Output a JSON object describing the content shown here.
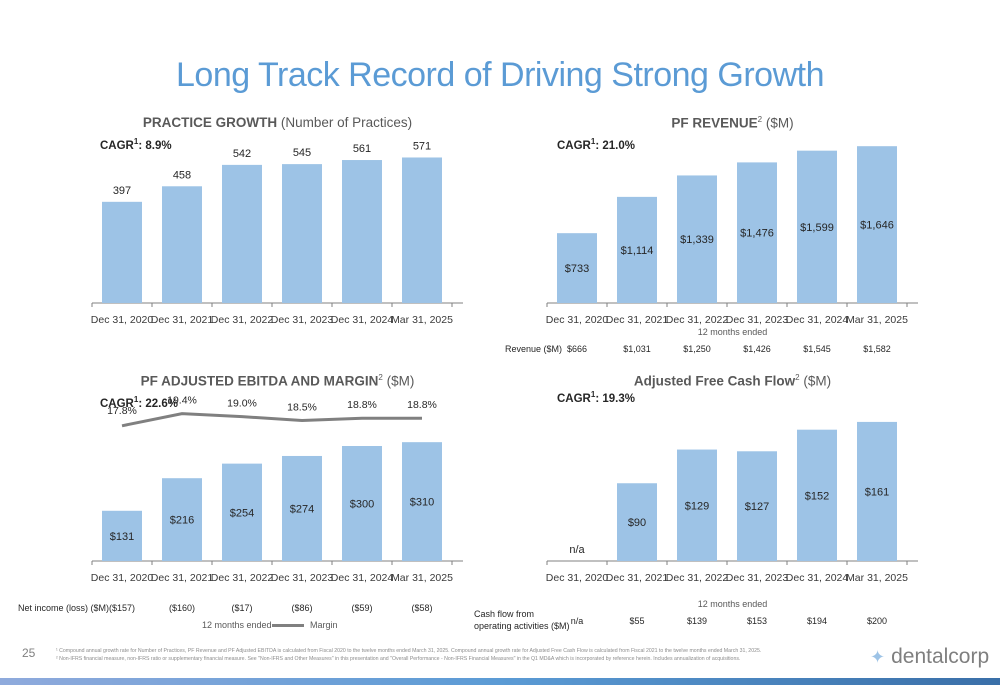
{
  "page": {
    "title": "Long Track Record of Driving Strong Growth",
    "page_number": "25",
    "logo_text": "dentalcorp",
    "logo_icon": "sparkle-icon",
    "footnotes": [
      "¹ Compound annual growth rate for Number of Practices, PF Revenue and PF Adjusted EBITDA is calculated from Fiscal 2020 to the twelve months ended March 31, 2025. Compound annual growth rate for Adjusted Free Cash Flow is calculated from Fiscal 2021 to the twelve months ended March 31, 2025.",
      "² Non-IFRS financial measure, non-IFRS ratio or supplementary financial measure. See \"Non-IFRS and Other Measures\" in this presentation and \"Overall Performance - Non-IFRS Financial Measures\" in the Q1 MD&A which is incorporated by reference herein. Includes annualization of acquisitions."
    ],
    "colors": {
      "bar": "#9dc3e6",
      "title": "#5b9bd5",
      "line": "#808080"
    }
  },
  "chart_data": [
    {
      "type": "bar",
      "title_bold": "PRACTICE GROWTH",
      "title_rest": " (Number of Practices)",
      "cagr_label": "CAGR",
      "cagr_sup": "1",
      "cagr_value": ": 8.9%",
      "categories": [
        "Dec 31, 2020",
        "Dec 31, 2021",
        "Dec 31, 2022",
        "Dec 31, 2023",
        "Dec 31, 2024",
        "Mar 31, 2025"
      ],
      "values": [
        397,
        458,
        542,
        545,
        561,
        571
      ],
      "data_labels": [
        "397",
        "458",
        "542",
        "545",
        "561",
        "571"
      ],
      "label_position": "above",
      "ylim": [
        0,
        620
      ]
    },
    {
      "type": "bar",
      "title_bold": "PF REVENUE",
      "title_sup": "2",
      "title_rest": " ($M)",
      "cagr_label": "CAGR",
      "cagr_sup": "1",
      "cagr_value": ": 21.0%",
      "categories": [
        "Dec 31, 2020",
        "Dec 31, 2021",
        "Dec 31, 2022",
        "Dec 31, 2023",
        "Dec 31, 2024",
        "Mar 31, 2025"
      ],
      "values": [
        733,
        1114,
        1339,
        1476,
        1599,
        1646
      ],
      "data_labels": [
        "$733",
        "$1,114",
        "$1,339",
        "$1,476",
        "$1,599",
        "$1,646"
      ],
      "label_position": "inside",
      "ylim": [
        0,
        1690
      ],
      "axis_note": "12 months ended",
      "row": {
        "label": "Revenue ($M)",
        "values": [
          "$666",
          "$1,031",
          "$1,250",
          "$1,426",
          "$1,545",
          "$1,582"
        ]
      }
    },
    {
      "type": "bar+line",
      "title_bold": "PF ADJUSTED EBITDA AND MARGIN",
      "title_sup": "2",
      "title_rest": " ($M)",
      "cagr_label": "CAGR",
      "cagr_sup": "1",
      "cagr_value": ": 22.6%",
      "categories": [
        "Dec 31, 2020",
        "Dec 31, 2021",
        "Dec 31, 2022",
        "Dec 31, 2023",
        "Dec 31, 2024",
        "Mar 31, 2025"
      ],
      "values": [
        131,
        216,
        254,
        274,
        300,
        310
      ],
      "data_labels": [
        "$131",
        "$216",
        "$254",
        "$274",
        "$300",
        "$310"
      ],
      "label_position": "inside",
      "ylim": [
        0,
        420
      ],
      "margin_values": [
        17.8,
        19.4,
        19.0,
        18.5,
        18.8,
        18.8
      ],
      "margin_labels": [
        "17.8%",
        "19.4%",
        "19.0%",
        "18.5%",
        "18.8%",
        "18.8%"
      ],
      "margin_range": [
        0,
        20.8
      ],
      "row": {
        "label": "Net income (loss) ($M)",
        "values": [
          "($157)",
          "($160)",
          "($17)",
          "($86)",
          "($59)",
          "($58)"
        ]
      },
      "axis_note": "12 months ended",
      "legend": {
        "line": "Margin",
        "position": "bottom"
      }
    },
    {
      "type": "bar",
      "title_bold": "Adjusted Free Cash Flow",
      "title_sup": "2",
      "title_rest": " ($M)",
      "cagr_label": "CAGR",
      "cagr_sup": "1",
      "cagr_value": ": 19.3%",
      "categories": [
        "Dec 31, 2020",
        "Dec 31, 2021",
        "Dec 31, 2022",
        "Dec 31, 2023",
        "Dec 31, 2024",
        "Mar 31, 2025"
      ],
      "values": [
        null,
        90,
        129,
        127,
        152,
        161
      ],
      "data_labels": [
        "n/a",
        "$90",
        "$129",
        "$127",
        "$152",
        "$161"
      ],
      "label_position": "inside",
      "ylim": [
        0,
        169
      ],
      "axis_note": "12 months ended",
      "row": {
        "label_line1": "Cash flow from",
        "label_line2": "operating activities ($M)",
        "values": [
          "n/a",
          "$55",
          "$139",
          "$153",
          "$194",
          "$200"
        ]
      }
    }
  ]
}
